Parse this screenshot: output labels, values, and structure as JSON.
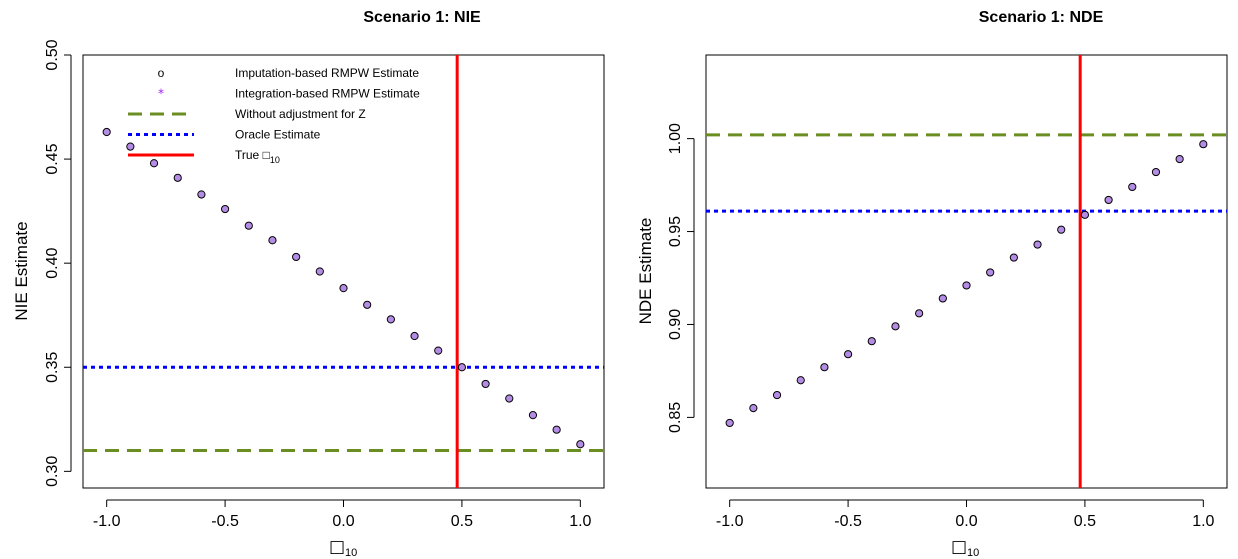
{
  "chart_data": [
    {
      "type": "scatter",
      "title": "Scenario 1: NIE",
      "ylabel": "NIE Estimate",
      "xlabel_glyph": "□",
      "xlabel_sub": "10",
      "xlim": [
        -1.1,
        1.1
      ],
      "ylim": [
        0.292,
        0.5
      ],
      "xticks": [
        -1.0,
        -0.5,
        0.0,
        0.5,
        1.0
      ],
      "xtick_labels": [
        "-1.0",
        "-0.5",
        "0.0",
        "0.5",
        "1.0"
      ],
      "yticks": [
        0.3,
        0.35,
        0.4,
        0.45,
        0.5
      ],
      "ytick_labels": [
        "0.30",
        "0.35",
        "0.40",
        "0.45",
        "0.50"
      ],
      "grid": false,
      "legend_position": "top-left",
      "series": [
        {
          "name": "Imputation-based RMPW Estimate",
          "x": [
            -1.0,
            -0.9,
            -0.8,
            -0.7,
            -0.6,
            -0.5,
            -0.4,
            -0.3,
            -0.2,
            -0.1,
            0.0,
            0.1,
            0.2,
            0.3,
            0.4,
            0.5,
            0.6,
            0.7,
            0.8,
            0.9,
            1.0
          ],
          "y": [
            0.463,
            0.456,
            0.448,
            0.441,
            0.433,
            0.426,
            0.418,
            0.411,
            0.403,
            0.396,
            0.388,
            0.38,
            0.373,
            0.365,
            0.358,
            0.35,
            0.342,
            0.335,
            0.327,
            0.32,
            0.313
          ]
        },
        {
          "name": "Integration-based RMPW Estimate",
          "x": [
            -1.0,
            -0.9,
            -0.8,
            -0.7,
            -0.6,
            -0.5,
            -0.4,
            -0.3,
            -0.2,
            -0.1,
            0.0,
            0.1,
            0.2,
            0.3,
            0.4,
            0.5,
            0.6,
            0.7,
            0.8,
            0.9,
            1.0
          ],
          "y": [
            0.463,
            0.456,
            0.448,
            0.441,
            0.433,
            0.426,
            0.418,
            0.411,
            0.403,
            0.396,
            0.388,
            0.38,
            0.373,
            0.365,
            0.358,
            0.35,
            0.342,
            0.335,
            0.327,
            0.32,
            0.313
          ]
        }
      ],
      "hlines": [
        {
          "name": "Without adjustment for Z",
          "y": 0.31,
          "color": "#6b8e23",
          "style": "dashed"
        },
        {
          "name": "Oracle Estimate",
          "y": 0.35,
          "color": "#0000ff",
          "style": "dotted"
        }
      ],
      "vlines": [
        {
          "name": "True □10",
          "x": 0.48,
          "color": "#ff0000",
          "style": "solid"
        }
      ],
      "legend": [
        {
          "label": "Imputation-based RMPW Estimate",
          "kind": "open-circle",
          "symbol": "o"
        },
        {
          "label": "Integration-based RMPW Estimate",
          "kind": "star",
          "symbol": "*",
          "color": "#a020f0"
        },
        {
          "label": "Without adjustment for Z",
          "kind": "dashed",
          "color": "#6b8e23"
        },
        {
          "label": "Oracle Estimate",
          "kind": "dotted",
          "color": "#0000ff"
        },
        {
          "label": "True □",
          "label_sub": "10",
          "kind": "solid",
          "color": "#ff0000"
        }
      ]
    },
    {
      "type": "scatter",
      "title": "Scenario 1: NDE",
      "ylabel": "NDE Estimate",
      "xlabel_glyph": "□",
      "xlabel_sub": "10",
      "xlim": [
        -1.1,
        1.1
      ],
      "ylim": [
        0.812,
        1.045
      ],
      "xticks": [
        -1.0,
        -0.5,
        0.0,
        0.5,
        1.0
      ],
      "xtick_labels": [
        "-1.0",
        "-0.5",
        "0.0",
        "0.5",
        "1.0"
      ],
      "yticks": [
        0.85,
        0.9,
        0.95,
        1.0
      ],
      "ytick_labels": [
        "0.85",
        "0.90",
        "0.95",
        "1.00"
      ],
      "grid": false,
      "series": [
        {
          "name": "Imputation-based RMPW Estimate",
          "x": [
            -1.0,
            -0.9,
            -0.8,
            -0.7,
            -0.6,
            -0.5,
            -0.4,
            -0.3,
            -0.2,
            -0.1,
            0.0,
            0.1,
            0.2,
            0.3,
            0.4,
            0.5,
            0.6,
            0.7,
            0.8,
            0.9,
            1.0
          ],
          "y": [
            0.847,
            0.855,
            0.862,
            0.87,
            0.877,
            0.884,
            0.891,
            0.899,
            0.906,
            0.914,
            0.921,
            0.928,
            0.936,
            0.943,
            0.951,
            0.959,
            0.967,
            0.974,
            0.982,
            0.989,
            0.997
          ]
        },
        {
          "name": "Integration-based RMPW Estimate",
          "x": [
            -1.0,
            -0.9,
            -0.8,
            -0.7,
            -0.6,
            -0.5,
            -0.4,
            -0.3,
            -0.2,
            -0.1,
            0.0,
            0.1,
            0.2,
            0.3,
            0.4,
            0.5,
            0.6,
            0.7,
            0.8,
            0.9,
            1.0
          ],
          "y": [
            0.847,
            0.855,
            0.862,
            0.87,
            0.877,
            0.884,
            0.891,
            0.899,
            0.906,
            0.914,
            0.921,
            0.928,
            0.936,
            0.943,
            0.951,
            0.959,
            0.967,
            0.974,
            0.982,
            0.989,
            0.997
          ]
        }
      ],
      "hlines": [
        {
          "name": "Without adjustment for Z",
          "y": 1.002,
          "color": "#6b8e23",
          "style": "dashed"
        },
        {
          "name": "Oracle Estimate",
          "y": 0.961,
          "color": "#0000ff",
          "style": "dotted"
        }
      ],
      "vlines": [
        {
          "name": "True □10",
          "x": 0.48,
          "color": "#ff0000",
          "style": "solid"
        }
      ]
    }
  ]
}
